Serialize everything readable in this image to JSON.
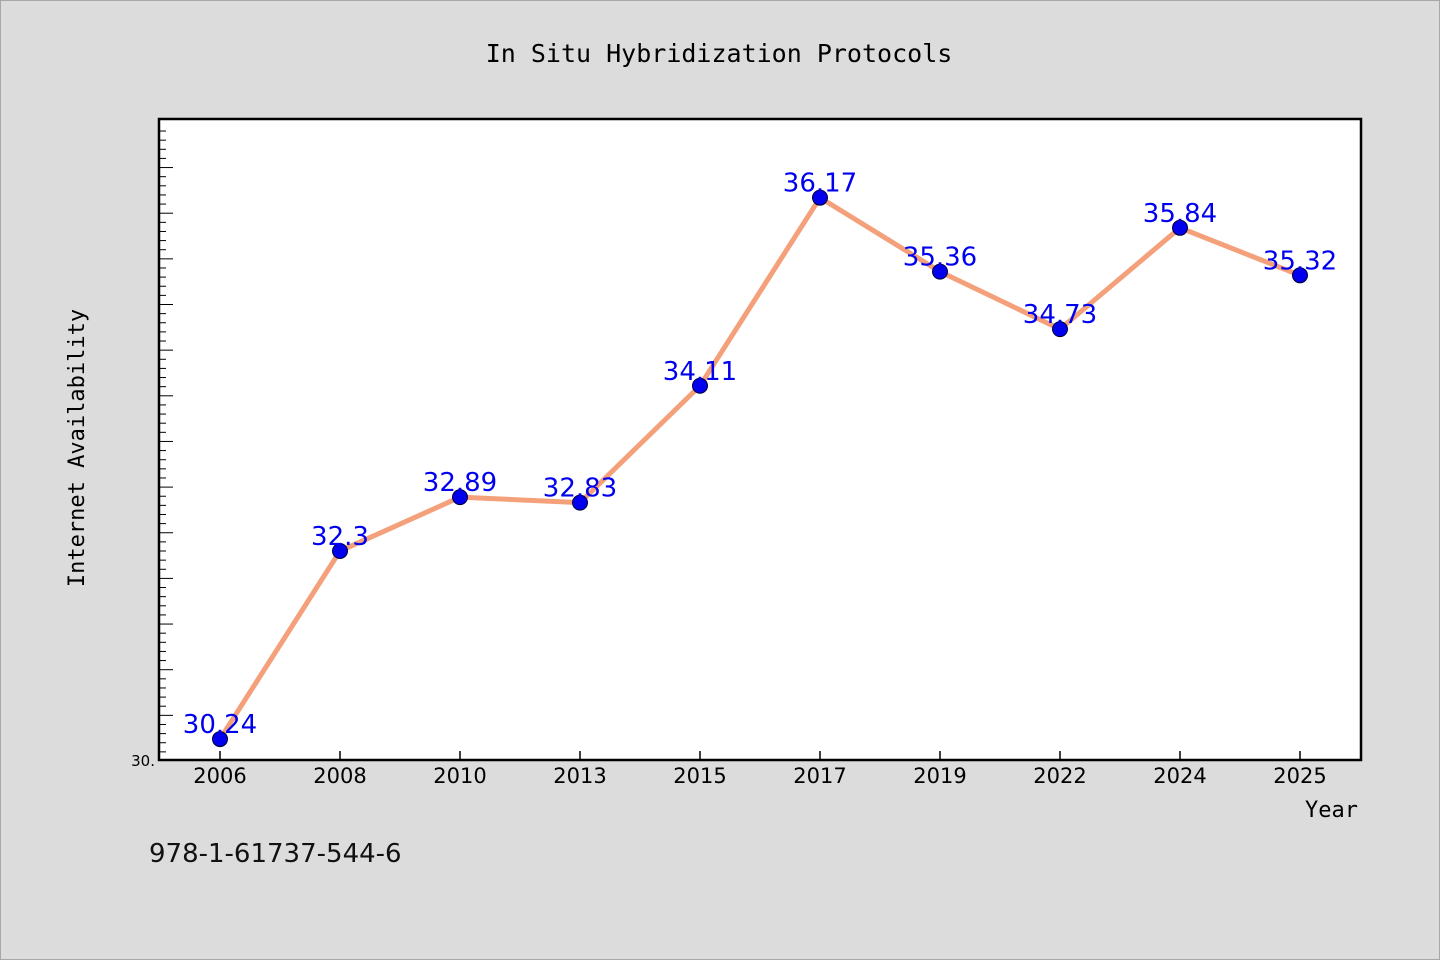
{
  "chart_data": {
    "type": "line",
    "title": "In Situ Hybridization Protocols",
    "xlabel": "Year",
    "ylabel": "Internet Availability",
    "categories": [
      "2006",
      "2008",
      "2010",
      "2013",
      "2015",
      "2017",
      "2019",
      "2022",
      "2024",
      "2025"
    ],
    "series": [
      {
        "values": [
          30.24,
          32.3,
          32.89,
          32.83,
          34.11,
          36.17,
          35.36,
          34.73,
          35.84,
          35.32
        ],
        "data_labels": [
          "30.24",
          "32.3",
          "32.89",
          "32.83",
          "34.11",
          "36.17",
          "35.36",
          "34.73",
          "35.84",
          "35.32"
        ],
        "line_color": "#f4a07a",
        "marker_color": "#0000ee",
        "label_color": "#0000ee"
      }
    ],
    "y_tick_label": "30.",
    "ylim": [
      30,
      37
    ],
    "grid": false,
    "legend": "none"
  },
  "annotation": "978-1-61737-544-6",
  "colors": {
    "background": "#dcdcdc",
    "plot_background": "#ffffff",
    "axis": "#000000"
  }
}
